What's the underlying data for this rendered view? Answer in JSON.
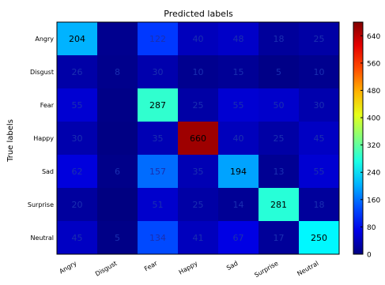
{
  "chart_data": {
    "type": "heatmap",
    "title": "Predicted labels",
    "xlabel": "",
    "ylabel": "True labels",
    "x_categories": [
      "Angry",
      "Disgust",
      "Fear",
      "Happy",
      "Sad",
      "Surprise",
      "Neutral"
    ],
    "y_categories": [
      "Angry",
      "Disgust",
      "Fear",
      "Happy",
      "Sad",
      "Surprise",
      "Neutral"
    ],
    "values": [
      [
        204,
        10,
        122,
        40,
        48,
        18,
        25
      ],
      [
        26,
        8,
        30,
        10,
        15,
        5,
        10
      ],
      [
        55,
        5,
        287,
        25,
        55,
        50,
        30
      ],
      [
        30,
        3,
        35,
        660,
        40,
        25,
        45
      ],
      [
        62,
        6,
        157,
        35,
        194,
        13,
        55
      ],
      [
        20,
        1,
        51,
        25,
        14,
        281,
        18
      ],
      [
        45,
        5,
        134,
        41,
        67,
        17,
        250
      ]
    ],
    "cell_labels": [
      [
        "204",
        "",
        "122",
        "40",
        "48",
        "18",
        "25"
      ],
      [
        "26",
        "8",
        "30",
        "10",
        "15",
        "5",
        "10"
      ],
      [
        "55",
        "",
        "287",
        "25",
        "55",
        "50",
        "30"
      ],
      [
        "30",
        "",
        "35",
        "660",
        "40",
        "25",
        "45"
      ],
      [
        "62",
        "6",
        "157",
        "35",
        "194",
        "13",
        "55"
      ],
      [
        "20",
        "",
        "51",
        "25",
        "14",
        "281",
        "18"
      ],
      [
        "45",
        "5",
        "134",
        "41",
        "67",
        "17",
        "250"
      ]
    ],
    "label_dark_threshold": 160,
    "colormap": "jet",
    "colorbar": {
      "range": [
        0,
        680
      ],
      "ticks": [
        0,
        80,
        160,
        240,
        320,
        400,
        480,
        560,
        640
      ]
    },
    "grid": false,
    "legend": "colorbar-right"
  }
}
